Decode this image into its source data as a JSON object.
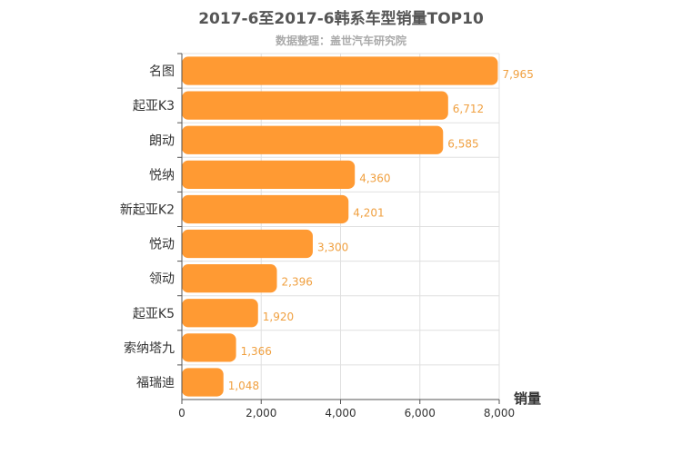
{
  "chart_data": {
    "type": "bar",
    "orientation": "horizontal",
    "title": "2017-6至2017-6韩系车型销量TOP10",
    "subtitle": "数据整理：盖世汽车研究院",
    "xlabel": "销量",
    "ylabel": "",
    "xlim": [
      0,
      8000
    ],
    "x_ticks": [
      0,
      2000,
      4000,
      6000,
      8000
    ],
    "x_tick_labels": [
      "0",
      "2,000",
      "4,000",
      "6,000",
      "8,000"
    ],
    "grid": true,
    "categories": [
      "名图",
      "起亚K3",
      "朗动",
      "悦纳",
      "新起亚K2",
      "悦动",
      "领动",
      "起亚K5",
      "索纳塔九",
      "福瑞迪"
    ],
    "values": [
      7965,
      6712,
      6585,
      4360,
      4201,
      3300,
      2396,
      1920,
      1366,
      1048
    ],
    "value_labels": [
      "7,965",
      "6,712",
      "6,585",
      "4,360",
      "4,201",
      "3,300",
      "2,396",
      "1,920",
      "1,366",
      "1,048"
    ],
    "colors": {
      "bar": "#ff9a33",
      "value_label": "#f0a040",
      "axis": "#555555",
      "grid": "#e0e0e0"
    }
  }
}
